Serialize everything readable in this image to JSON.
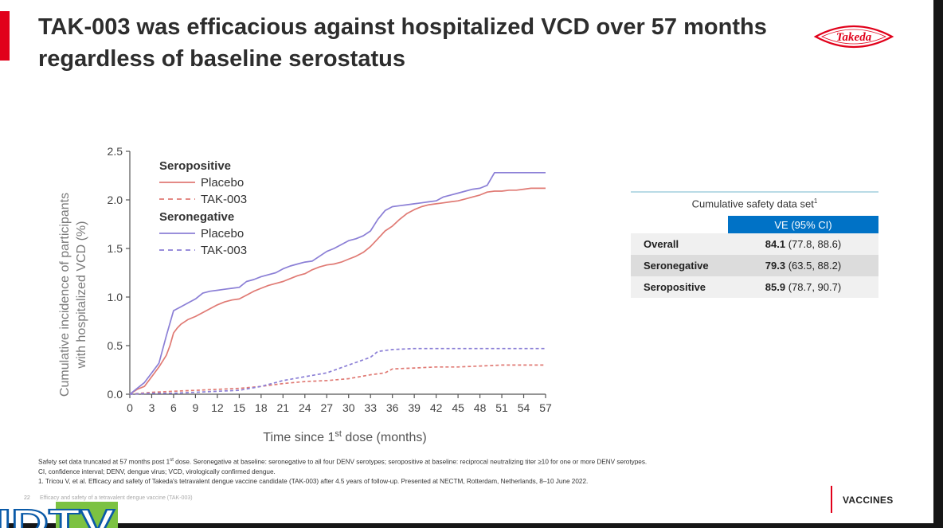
{
  "slide": {
    "title_line1": "TAK-003 was efficacious against hospitalized VCD over 57 months",
    "title_line2": "regardless of baseline serostatus",
    "logo_text": "Takeda",
    "slide_number": "22",
    "slide_subtitle": "Efficacy and safety of a tetravalent dengue vaccine (TAK-003)",
    "section_label": "VACCINES",
    "watermark": "IDTV",
    "colors": {
      "accent_red": "#e1001a",
      "placebo_color": "#e07a74",
      "seroneg_color": "#8b7fd6",
      "table_header": "#0072c6"
    }
  },
  "chart_data": {
    "type": "line",
    "ylabel_line1": "Cumulative incidence of participants",
    "ylabel_line2": "with hospitalized VCD (%)",
    "xlabel_prefix": "Time since 1",
    "xlabel_sup": "st",
    "xlabel_suffix": " dose (months)",
    "xlim": [
      0,
      57
    ],
    "ylim": [
      0,
      2.5
    ],
    "xticks": [
      0,
      3,
      6,
      9,
      12,
      15,
      18,
      21,
      24,
      27,
      30,
      33,
      36,
      39,
      42,
      45,
      48,
      51,
      54,
      57
    ],
    "yticks": [
      "0.0",
      "0.5",
      "1.0",
      "1.5",
      "2.0",
      "2.5"
    ],
    "grid": false,
    "legend": {
      "position": "top-left",
      "groups": [
        {
          "heading": "Seropositive",
          "entries": [
            {
              "name": "Placebo",
              "series": 0
            },
            {
              "name": "TAK-003",
              "series": 1
            }
          ]
        },
        {
          "heading": "Seronegative",
          "entries": [
            {
              "name": "Placebo",
              "series": 2
            },
            {
              "name": "TAK-003",
              "series": 3
            }
          ]
        }
      ]
    },
    "series": [
      {
        "group": "Seropositive",
        "name": "Placebo",
        "color": "#e07a74",
        "dash": false,
        "x": [
          0,
          1,
          2,
          3,
          4,
          5,
          5.5,
          6,
          6.5,
          7,
          8,
          9,
          10,
          11,
          12,
          13,
          14,
          15,
          16,
          17,
          18,
          19,
          20,
          21,
          22,
          23,
          24,
          25,
          26,
          27,
          28,
          29,
          30,
          31,
          32,
          33,
          34,
          35,
          36,
          37,
          38,
          39,
          40,
          41,
          42,
          43,
          44,
          45,
          46,
          47,
          48,
          49,
          50,
          51,
          52,
          53,
          54,
          55,
          56,
          57
        ],
        "y": [
          0,
          0.05,
          0.08,
          0.18,
          0.28,
          0.4,
          0.5,
          0.63,
          0.68,
          0.72,
          0.77,
          0.8,
          0.84,
          0.88,
          0.92,
          0.95,
          0.97,
          0.98,
          1.02,
          1.06,
          1.09,
          1.12,
          1.14,
          1.16,
          1.19,
          1.22,
          1.24,
          1.28,
          1.31,
          1.33,
          1.34,
          1.36,
          1.39,
          1.42,
          1.46,
          1.52,
          1.6,
          1.68,
          1.73,
          1.8,
          1.86,
          1.9,
          1.93,
          1.95,
          1.96,
          1.97,
          1.98,
          1.99,
          2.01,
          2.03,
          2.05,
          2.08,
          2.09,
          2.09,
          2.1,
          2.1,
          2.11,
          2.12,
          2.12,
          2.12
        ]
      },
      {
        "group": "Seropositive",
        "name": "TAK-003",
        "color": "#e07a74",
        "dash": true,
        "x": [
          0,
          3,
          6,
          9,
          12,
          15,
          18,
          21,
          24,
          27,
          30,
          33,
          35,
          36,
          39,
          42,
          45,
          48,
          51,
          54,
          57
        ],
        "y": [
          0,
          0.02,
          0.03,
          0.04,
          0.05,
          0.06,
          0.08,
          0.11,
          0.13,
          0.14,
          0.16,
          0.2,
          0.22,
          0.26,
          0.27,
          0.28,
          0.28,
          0.29,
          0.3,
          0.3,
          0.3
        ]
      },
      {
        "group": "Seronegative",
        "name": "Placebo",
        "color": "#8b7fd6",
        "dash": false,
        "x": [
          0,
          1,
          2,
          3,
          4,
          5,
          6,
          7,
          8,
          9,
          10,
          11,
          12,
          13,
          14,
          15,
          16,
          17,
          18,
          19,
          20,
          21,
          22,
          23,
          24,
          25,
          26,
          27,
          28,
          29,
          30,
          31,
          32,
          33,
          34,
          35,
          36,
          37,
          38,
          39,
          40,
          41,
          42,
          43,
          44,
          45,
          46,
          47,
          48,
          49,
          50,
          51,
          52,
          53,
          54,
          55,
          56,
          57
        ],
        "y": [
          0,
          0.06,
          0.12,
          0.22,
          0.32,
          0.6,
          0.86,
          0.9,
          0.94,
          0.98,
          1.04,
          1.06,
          1.07,
          1.08,
          1.09,
          1.1,
          1.16,
          1.18,
          1.21,
          1.23,
          1.25,
          1.29,
          1.32,
          1.34,
          1.36,
          1.37,
          1.42,
          1.47,
          1.5,
          1.54,
          1.58,
          1.6,
          1.63,
          1.68,
          1.8,
          1.89,
          1.93,
          1.94,
          1.95,
          1.96,
          1.97,
          1.98,
          1.99,
          2.03,
          2.05,
          2.07,
          2.09,
          2.11,
          2.12,
          2.15,
          2.28,
          2.28,
          2.28,
          2.28,
          2.28,
          2.28,
          2.28,
          2.28
        ]
      },
      {
        "group": "Seronegative",
        "name": "TAK-003",
        "color": "#8b7fd6",
        "dash": true,
        "x": [
          0,
          3,
          6,
          9,
          12,
          15,
          18,
          21,
          24,
          27,
          30,
          33,
          34,
          35,
          36,
          39,
          42,
          45,
          48,
          51,
          54,
          57
        ],
        "y": [
          0,
          0.01,
          0.01,
          0.02,
          0.03,
          0.04,
          0.08,
          0.14,
          0.18,
          0.22,
          0.3,
          0.38,
          0.44,
          0.45,
          0.46,
          0.47,
          0.47,
          0.47,
          0.47,
          0.47,
          0.47,
          0.47
        ]
      }
    ]
  },
  "safety_table": {
    "caption": "Cumulative safety data set",
    "caption_sup": "1",
    "header": "VE (95% CI)",
    "rows": [
      {
        "label": "Overall",
        "value": "84.1",
        "ci": " (77.8, 88.6)"
      },
      {
        "label": "Seronegative",
        "value": "79.3",
        "ci": " (63.5, 88.2)"
      },
      {
        "label": "Seropositive",
        "value": "85.9",
        "ci": " (78.7, 90.7)"
      }
    ]
  },
  "footnotes": {
    "line1a": "Safety set data truncated at 57 months post 1",
    "line1_sup": "st",
    "line1b": " dose. Seronegative at baseline: seronegative to all four DENV serotypes; seropositive at baseline: reciprocal neutralizing titer ≥10 for one or more DENV serotypes.",
    "line2": "CI, confidence interval; DENV, dengue virus; VCD, virologically confirmed dengue.",
    "line3": "1. Tricou V, et al. Efficacy and safety of Takeda's tetravalent dengue vaccine candidate (TAK-003) after 4.5 years of follow-up. Presented at NECTM, Rotterdam, Netherlands, 8–10 June 2022."
  }
}
